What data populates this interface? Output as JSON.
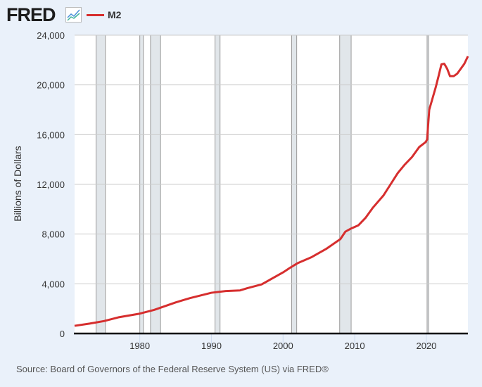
{
  "header": {
    "logo": "FRED",
    "legend": "M2"
  },
  "source": "Source: Board of Governors of the Federal Reserve System (US) via FRED®",
  "colors": {
    "series": "#d62e2e",
    "recession": "#e1e6ea"
  },
  "chart_data": {
    "type": "line",
    "title": "M2",
    "ylabel": "Billions of Dollars",
    "xlabel": "",
    "xlim": [
      1970.9,
      2025.8
    ],
    "ylim": [
      0,
      24000
    ],
    "xticks": [
      1980,
      1990,
      2000,
      2010,
      2020
    ],
    "yticks": [
      0,
      4000,
      8000,
      12000,
      16000,
      20000,
      24000
    ],
    "ytick_labels": [
      "0",
      "4,000",
      "8,000",
      "12,000",
      "16,000",
      "20,000",
      "24,000"
    ],
    "recessions": [
      [
        1973.9,
        1975.2
      ],
      [
        1980.0,
        1980.5
      ],
      [
        1981.5,
        1982.9
      ],
      [
        1990.5,
        1991.2
      ],
      [
        2001.2,
        2001.9
      ],
      [
        2007.9,
        2009.5
      ],
      [
        2020.1,
        2020.3
      ]
    ],
    "series": [
      {
        "name": "M2",
        "x": [
          1970.9,
          1973,
          1975,
          1977,
          1980,
          1982,
          1985,
          1987,
          1990,
          1992,
          1994,
          1995,
          1997,
          2000,
          2001,
          2002,
          2004,
          2006,
          2008,
          2008.7,
          2009.5,
          2010.5,
          2011.5,
          2012.5,
          2014,
          2015,
          2016,
          2017,
          2018,
          2019,
          2019.9,
          2020.1,
          2020.4,
          2020.8,
          2021.3,
          2021.7,
          2022.1,
          2022.5,
          2022.9,
          2023.3,
          2023.8,
          2024.3,
          2024.8,
          2025.3,
          2025.8
        ],
        "y": [
          620,
          800,
          1000,
          1300,
          1600,
          1900,
          2500,
          2850,
          3280,
          3420,
          3470,
          3650,
          3950,
          4920,
          5300,
          5650,
          6150,
          6800,
          7600,
          8200,
          8450,
          8700,
          9300,
          10100,
          11100,
          12000,
          12900,
          13600,
          14200,
          15000,
          15400,
          15600,
          18000,
          18800,
          19800,
          20700,
          21650,
          21700,
          21300,
          20700,
          20700,
          20900,
          21300,
          21700,
          22300
        ]
      }
    ]
  }
}
